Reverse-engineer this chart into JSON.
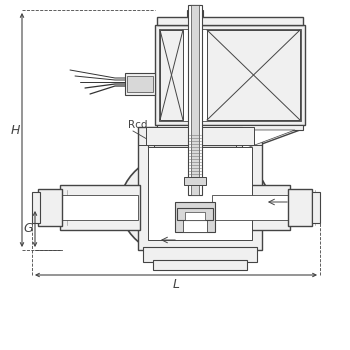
{
  "background_color": "#ffffff",
  "line_color": "#444444",
  "dim_color": "#444444",
  "fill_light": "#f0f0f0",
  "fill_mid": "#d8d8d8",
  "fill_dark": "#b8b8b8",
  "label_H": "H",
  "label_G": "G",
  "label_L": "L",
  "label_Rcd": "Rcd"
}
